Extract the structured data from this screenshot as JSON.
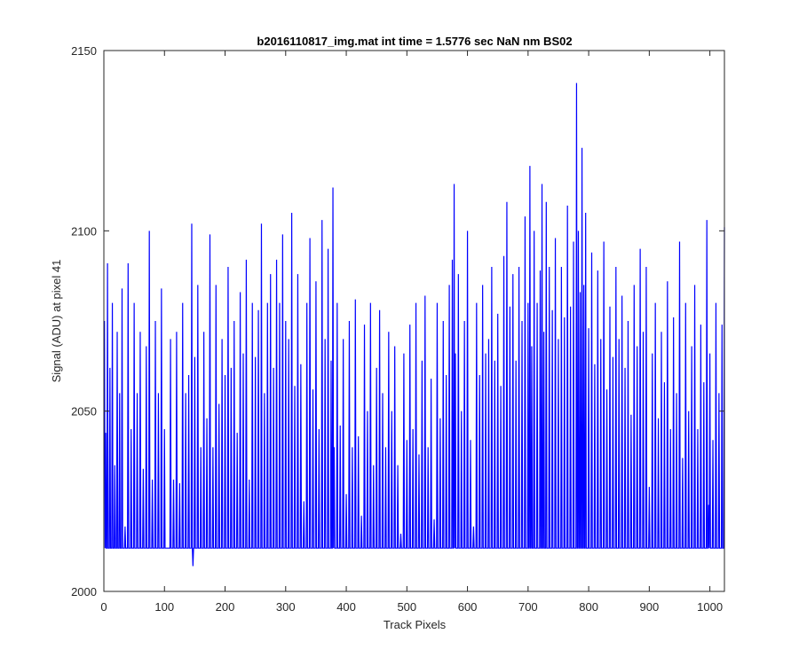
{
  "chart_data": {
    "type": "line",
    "title": "b2016110817_img.mat int time = 1.5776 sec  NaN nm BS02",
    "xlabel": "Track Pixels",
    "ylabel": "Signal (ADU) at pixel 41",
    "xlim": [
      0,
      1024
    ],
    "ylim": [
      2000,
      2150
    ],
    "xticks": [
      0,
      100,
      200,
      300,
      400,
      500,
      600,
      700,
      800,
      900,
      1000
    ],
    "yticks": [
      2000,
      2050,
      2100,
      2150
    ],
    "xtick_labels": [
      "0",
      "100",
      "200",
      "300",
      "400",
      "500",
      "600",
      "700",
      "800",
      "900",
      "1000"
    ],
    "ytick_labels": [
      "2000",
      "2050",
      "2100",
      "2150"
    ],
    "grid": false,
    "series": [
      {
        "color": "#0000ff",
        "note_values": "approximate noisy trace sampled every pixel, readings estimated from figure",
        "x_start": 1,
        "x_step": 1,
        "anchor_points": [
          [
            1,
            2075
          ],
          [
            3,
            2044
          ],
          [
            6,
            2091
          ],
          [
            10,
            2062
          ],
          [
            14,
            2080
          ],
          [
            18,
            2035
          ],
          [
            22,
            2072
          ],
          [
            26,
            2055
          ],
          [
            30,
            2084
          ],
          [
            35,
            2018
          ],
          [
            40,
            2091
          ],
          [
            45,
            2045
          ],
          [
            50,
            2080
          ],
          [
            55,
            2055
          ],
          [
            60,
            2072
          ],
          [
            65,
            2034
          ],
          [
            70,
            2068
          ],
          [
            75,
            2100
          ],
          [
            80,
            2031
          ],
          [
            85,
            2075
          ],
          [
            90,
            2055
          ],
          [
            95,
            2084
          ],
          [
            100,
            2045
          ],
          [
            110,
            2070
          ],
          [
            115,
            2031
          ],
          [
            120,
            2072
          ],
          [
            125,
            2030
          ],
          [
            130,
            2080
          ],
          [
            135,
            2055
          ],
          [
            140,
            2060
          ],
          [
            145,
            2102
          ],
          [
            147,
            2007
          ],
          [
            150,
            2065
          ],
          [
            155,
            2085
          ],
          [
            160,
            2040
          ],
          [
            165,
            2072
          ],
          [
            170,
            2048
          ],
          [
            175,
            2099
          ],
          [
            180,
            2040
          ],
          [
            185,
            2085
          ],
          [
            190,
            2052
          ],
          [
            195,
            2070
          ],
          [
            200,
            2060
          ],
          [
            205,
            2090
          ],
          [
            210,
            2062
          ],
          [
            215,
            2075
          ],
          [
            220,
            2044
          ],
          [
            225,
            2083
          ],
          [
            230,
            2066
          ],
          [
            235,
            2092
          ],
          [
            240,
            2031
          ],
          [
            245,
            2080
          ],
          [
            250,
            2065
          ],
          [
            255,
            2078
          ],
          [
            260,
            2102
          ],
          [
            265,
            2055
          ],
          [
            270,
            2080
          ],
          [
            275,
            2088
          ],
          [
            280,
            2062
          ],
          [
            285,
            2092
          ],
          [
            290,
            2080
          ],
          [
            295,
            2099
          ],
          [
            300,
            2075
          ],
          [
            305,
            2070
          ],
          [
            310,
            2105
          ],
          [
            315,
            2057
          ],
          [
            320,
            2088
          ],
          [
            325,
            2063
          ],
          [
            330,
            2025
          ],
          [
            335,
            2080
          ],
          [
            340,
            2098
          ],
          [
            345,
            2056
          ],
          [
            350,
            2086
          ],
          [
            355,
            2045
          ],
          [
            360,
            2103
          ],
          [
            365,
            2070
          ],
          [
            370,
            2095
          ],
          [
            375,
            2064
          ],
          [
            378,
            2112
          ],
          [
            380,
            2040
          ],
          [
            385,
            2080
          ],
          [
            390,
            2046
          ],
          [
            395,
            2070
          ],
          [
            400,
            2027
          ],
          [
            405,
            2075
          ],
          [
            410,
            2040
          ],
          [
            415,
            2081
          ],
          [
            420,
            2043
          ],
          [
            425,
            2021
          ],
          [
            430,
            2074
          ],
          [
            435,
            2050
          ],
          [
            440,
            2080
          ],
          [
            445,
            2035
          ],
          [
            450,
            2062
          ],
          [
            455,
            2078
          ],
          [
            460,
            2055
          ],
          [
            465,
            2040
          ],
          [
            470,
            2072
          ],
          [
            475,
            2050
          ],
          [
            480,
            2068
          ],
          [
            485,
            2035
          ],
          [
            490,
            2016
          ],
          [
            495,
            2066
          ],
          [
            500,
            2042
          ],
          [
            505,
            2074
          ],
          [
            510,
            2045
          ],
          [
            515,
            2080
          ],
          [
            520,
            2038
          ],
          [
            525,
            2064
          ],
          [
            530,
            2082
          ],
          [
            535,
            2040
          ],
          [
            540,
            2059
          ],
          [
            545,
            2020
          ],
          [
            550,
            2080
          ],
          [
            555,
            2048
          ],
          [
            560,
            2075
          ],
          [
            565,
            2060
          ],
          [
            570,
            2085
          ],
          [
            575,
            2092
          ],
          [
            578,
            2113
          ],
          [
            580,
            2066
          ],
          [
            585,
            2088
          ],
          [
            590,
            2050
          ],
          [
            595,
            2075
          ],
          [
            600,
            2100
          ],
          [
            605,
            2042
          ],
          [
            610,
            2018
          ],
          [
            615,
            2080
          ],
          [
            620,
            2060
          ],
          [
            625,
            2085
          ],
          [
            630,
            2066
          ],
          [
            635,
            2070
          ],
          [
            640,
            2090
          ],
          [
            645,
            2064
          ],
          [
            650,
            2077
          ],
          [
            655,
            2057
          ],
          [
            660,
            2093
          ],
          [
            665,
            2108
          ],
          [
            670,
            2079
          ],
          [
            675,
            2088
          ],
          [
            680,
            2064
          ],
          [
            685,
            2090
          ],
          [
            690,
            2075
          ],
          [
            695,
            2104
          ],
          [
            700,
            2080
          ],
          [
            703,
            2118
          ],
          [
            706,
            2068
          ],
          [
            710,
            2100
          ],
          [
            715,
            2080
          ],
          [
            720,
            2089
          ],
          [
            723,
            2113
          ],
          [
            726,
            2072
          ],
          [
            730,
            2108
          ],
          [
            735,
            2090
          ],
          [
            740,
            2078
          ],
          [
            745,
            2098
          ],
          [
            750,
            2070
          ],
          [
            755,
            2090
          ],
          [
            760,
            2076
          ],
          [
            765,
            2107
          ],
          [
            770,
            2079
          ],
          [
            775,
            2097
          ],
          [
            780,
            2141
          ],
          [
            783,
            2100
          ],
          [
            786,
            2083
          ],
          [
            789,
            2123
          ],
          [
            792,
            2085
          ],
          [
            795,
            2105
          ],
          [
            800,
            2073
          ],
          [
            805,
            2094
          ],
          [
            810,
            2063
          ],
          [
            815,
            2089
          ],
          [
            820,
            2070
          ],
          [
            825,
            2097
          ],
          [
            830,
            2056
          ],
          [
            835,
            2079
          ],
          [
            840,
            2065
          ],
          [
            845,
            2090
          ],
          [
            850,
            2070
          ],
          [
            855,
            2082
          ],
          [
            860,
            2062
          ],
          [
            865,
            2075
          ],
          [
            870,
            2049
          ],
          [
            875,
            2085
          ],
          [
            880,
            2068
          ],
          [
            885,
            2095
          ],
          [
            890,
            2072
          ],
          [
            895,
            2090
          ],
          [
            900,
            2029
          ],
          [
            905,
            2066
          ],
          [
            910,
            2080
          ],
          [
            915,
            2048
          ],
          [
            920,
            2072
          ],
          [
            925,
            2058
          ],
          [
            930,
            2086
          ],
          [
            935,
            2045
          ],
          [
            940,
            2076
          ],
          [
            945,
            2055
          ],
          [
            950,
            2097
          ],
          [
            955,
            2037
          ],
          [
            960,
            2080
          ],
          [
            965,
            2050
          ],
          [
            970,
            2068
          ],
          [
            975,
            2085
          ],
          [
            980,
            2045
          ],
          [
            985,
            2074
          ],
          [
            990,
            2058
          ],
          [
            995,
            2103
          ],
          [
            998,
            2024
          ],
          [
            1000,
            2066
          ],
          [
            1005,
            2042
          ],
          [
            1010,
            2080
          ],
          [
            1015,
            2055
          ],
          [
            1020,
            2074
          ],
          [
            1024,
            2101
          ]
        ]
      }
    ]
  }
}
